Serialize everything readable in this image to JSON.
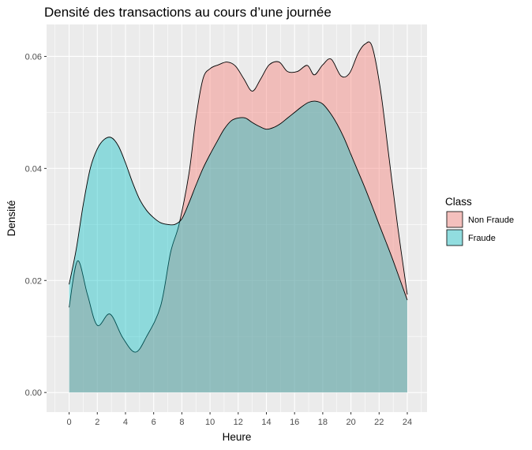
{
  "chart_data": {
    "type": "area",
    "title": "Densité des transactions au cours d’une journée",
    "xlabel": "Heure",
    "ylabel": "Densité",
    "xlim": [
      -1.6,
      25.4
    ],
    "ylim": [
      -0.0035,
      0.0657
    ],
    "x_ticks": [
      "0",
      "2",
      "4",
      "6",
      "8",
      "10",
      "12",
      "14",
      "16",
      "18",
      "20",
      "22",
      "24"
    ],
    "y_ticks": [
      "0.00",
      "0.02",
      "0.04",
      "0.06"
    ],
    "grid": true,
    "legend": {
      "title": "Class",
      "position": "right"
    },
    "series": [
      {
        "name": "Non Fraude",
        "color": "#F8766D",
        "fill_opacity": 0.4,
        "x": [
          0,
          0.6,
          1.3,
          2.0,
          2.9,
          3.8,
          4.7,
          5.5,
          6.5,
          7.2,
          7.8,
          8.5,
          9.0,
          9.5,
          10.0,
          10.6,
          11.2,
          11.8,
          12.4,
          13.0,
          13.6,
          14.2,
          14.9,
          15.5,
          16.2,
          16.9,
          17.4,
          18.0,
          18.6,
          19.3,
          19.9,
          20.5,
          21.0,
          21.5,
          22.1,
          22.7,
          23.3,
          24.0
        ],
        "values": [
          0.0152,
          0.0235,
          0.0175,
          0.012,
          0.014,
          0.0098,
          0.0072,
          0.01,
          0.0155,
          0.025,
          0.03,
          0.039,
          0.049,
          0.056,
          0.0578,
          0.0585,
          0.059,
          0.0583,
          0.056,
          0.0538,
          0.056,
          0.0585,
          0.059,
          0.0573,
          0.0573,
          0.0584,
          0.0567,
          0.0585,
          0.0595,
          0.0565,
          0.057,
          0.0605,
          0.0622,
          0.0618,
          0.054,
          0.042,
          0.03,
          0.0175
        ]
      },
      {
        "name": "Fraude",
        "color": "#00BFC4",
        "fill_opacity": 0.4,
        "x": [
          0,
          0.5,
          1.0,
          1.5,
          2.0,
          2.5,
          3.0,
          3.5,
          4.0,
          4.5,
          5.0,
          5.5,
          6.0,
          6.5,
          7.0,
          7.5,
          8.0,
          8.5,
          9.0,
          9.5,
          10.0,
          10.5,
          11.0,
          11.5,
          12.0,
          12.5,
          13.0,
          13.5,
          14.0,
          14.5,
          15.0,
          15.5,
          16.0,
          16.5,
          17.0,
          17.5,
          18.0,
          18.5,
          19.0,
          19.5,
          20.0,
          20.5,
          21.0,
          21.5,
          22.0,
          22.5,
          23.0,
          23.5,
          24.0
        ],
        "values": [
          0.0193,
          0.0255,
          0.0335,
          0.04,
          0.0435,
          0.0452,
          0.0455,
          0.044,
          0.041,
          0.0375,
          0.0345,
          0.0325,
          0.0312,
          0.0303,
          0.03,
          0.03,
          0.031,
          0.0338,
          0.037,
          0.04,
          0.0425,
          0.0448,
          0.047,
          0.0485,
          0.049,
          0.049,
          0.0482,
          0.0475,
          0.047,
          0.0473,
          0.048,
          0.049,
          0.05,
          0.051,
          0.0518,
          0.052,
          0.0515,
          0.05,
          0.048,
          0.0455,
          0.0425,
          0.0395,
          0.0365,
          0.0333,
          0.03,
          0.0268,
          0.0235,
          0.02,
          0.0165
        ]
      }
    ]
  }
}
